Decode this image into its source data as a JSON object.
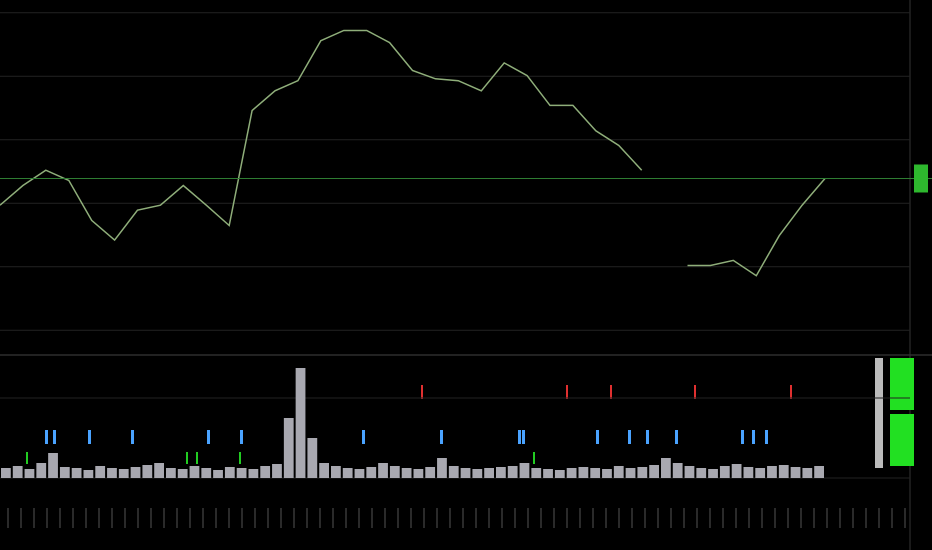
{
  "chart_data": [
    {
      "type": "line",
      "series": [
        {
          "color": "#8fae7a",
          "values": [
            1.97,
            2.28,
            2.52,
            2.36,
            1.73,
            1.42,
            1.89,
            1.97,
            2.28,
            1.97,
            1.65,
            3.46,
            3.77,
            3.93,
            4.56,
            4.72,
            4.72,
            4.53,
            4.09,
            3.96,
            3.93,
            3.77,
            4.21,
            4.01,
            3.54,
            3.54,
            3.14,
            2.91,
            2.52,
            null,
            1.02,
            1.02,
            1.1,
            0.86,
            1.49,
            1.97,
            2.39
          ]
        }
      ],
      "hline": 2.39,
      "hline_color": "#2e7d32",
      "ylim": [
        -0.2,
        5.2
      ],
      "yticks": [
        0,
        1,
        2,
        3,
        4,
        5
      ],
      "grid": true
    },
    {
      "type": "bar",
      "values": [
        0.1,
        0.12,
        0.09,
        0.15,
        0.25,
        0.11,
        0.1,
        0.08,
        0.12,
        0.1,
        0.09,
        0.11,
        0.13,
        0.15,
        0.1,
        0.09,
        0.12,
        0.1,
        0.08,
        0.11,
        0.1,
        0.09,
        0.12,
        0.14,
        0.6,
        1.1,
        0.4,
        0.15,
        0.12,
        0.1,
        0.09,
        0.11,
        0.15,
        0.12,
        0.1,
        0.09,
        0.11,
        0.2,
        0.12,
        0.1,
        0.09,
        0.1,
        0.11,
        0.12,
        0.15,
        0.1,
        0.09,
        0.08,
        0.1,
        0.11,
        0.1,
        0.09,
        0.12,
        0.1,
        0.11,
        0.13,
        0.2,
        0.15,
        0.12,
        0.1,
        0.09,
        0.12,
        0.14,
        0.11,
        0.1,
        0.12,
        0.13,
        0.11,
        0.1,
        0.12
      ],
      "color": "#a8a8b0",
      "ylim": [
        0,
        1.2
      ],
      "yticks": [
        0,
        0.8
      ],
      "grid": true
    }
  ]
}
